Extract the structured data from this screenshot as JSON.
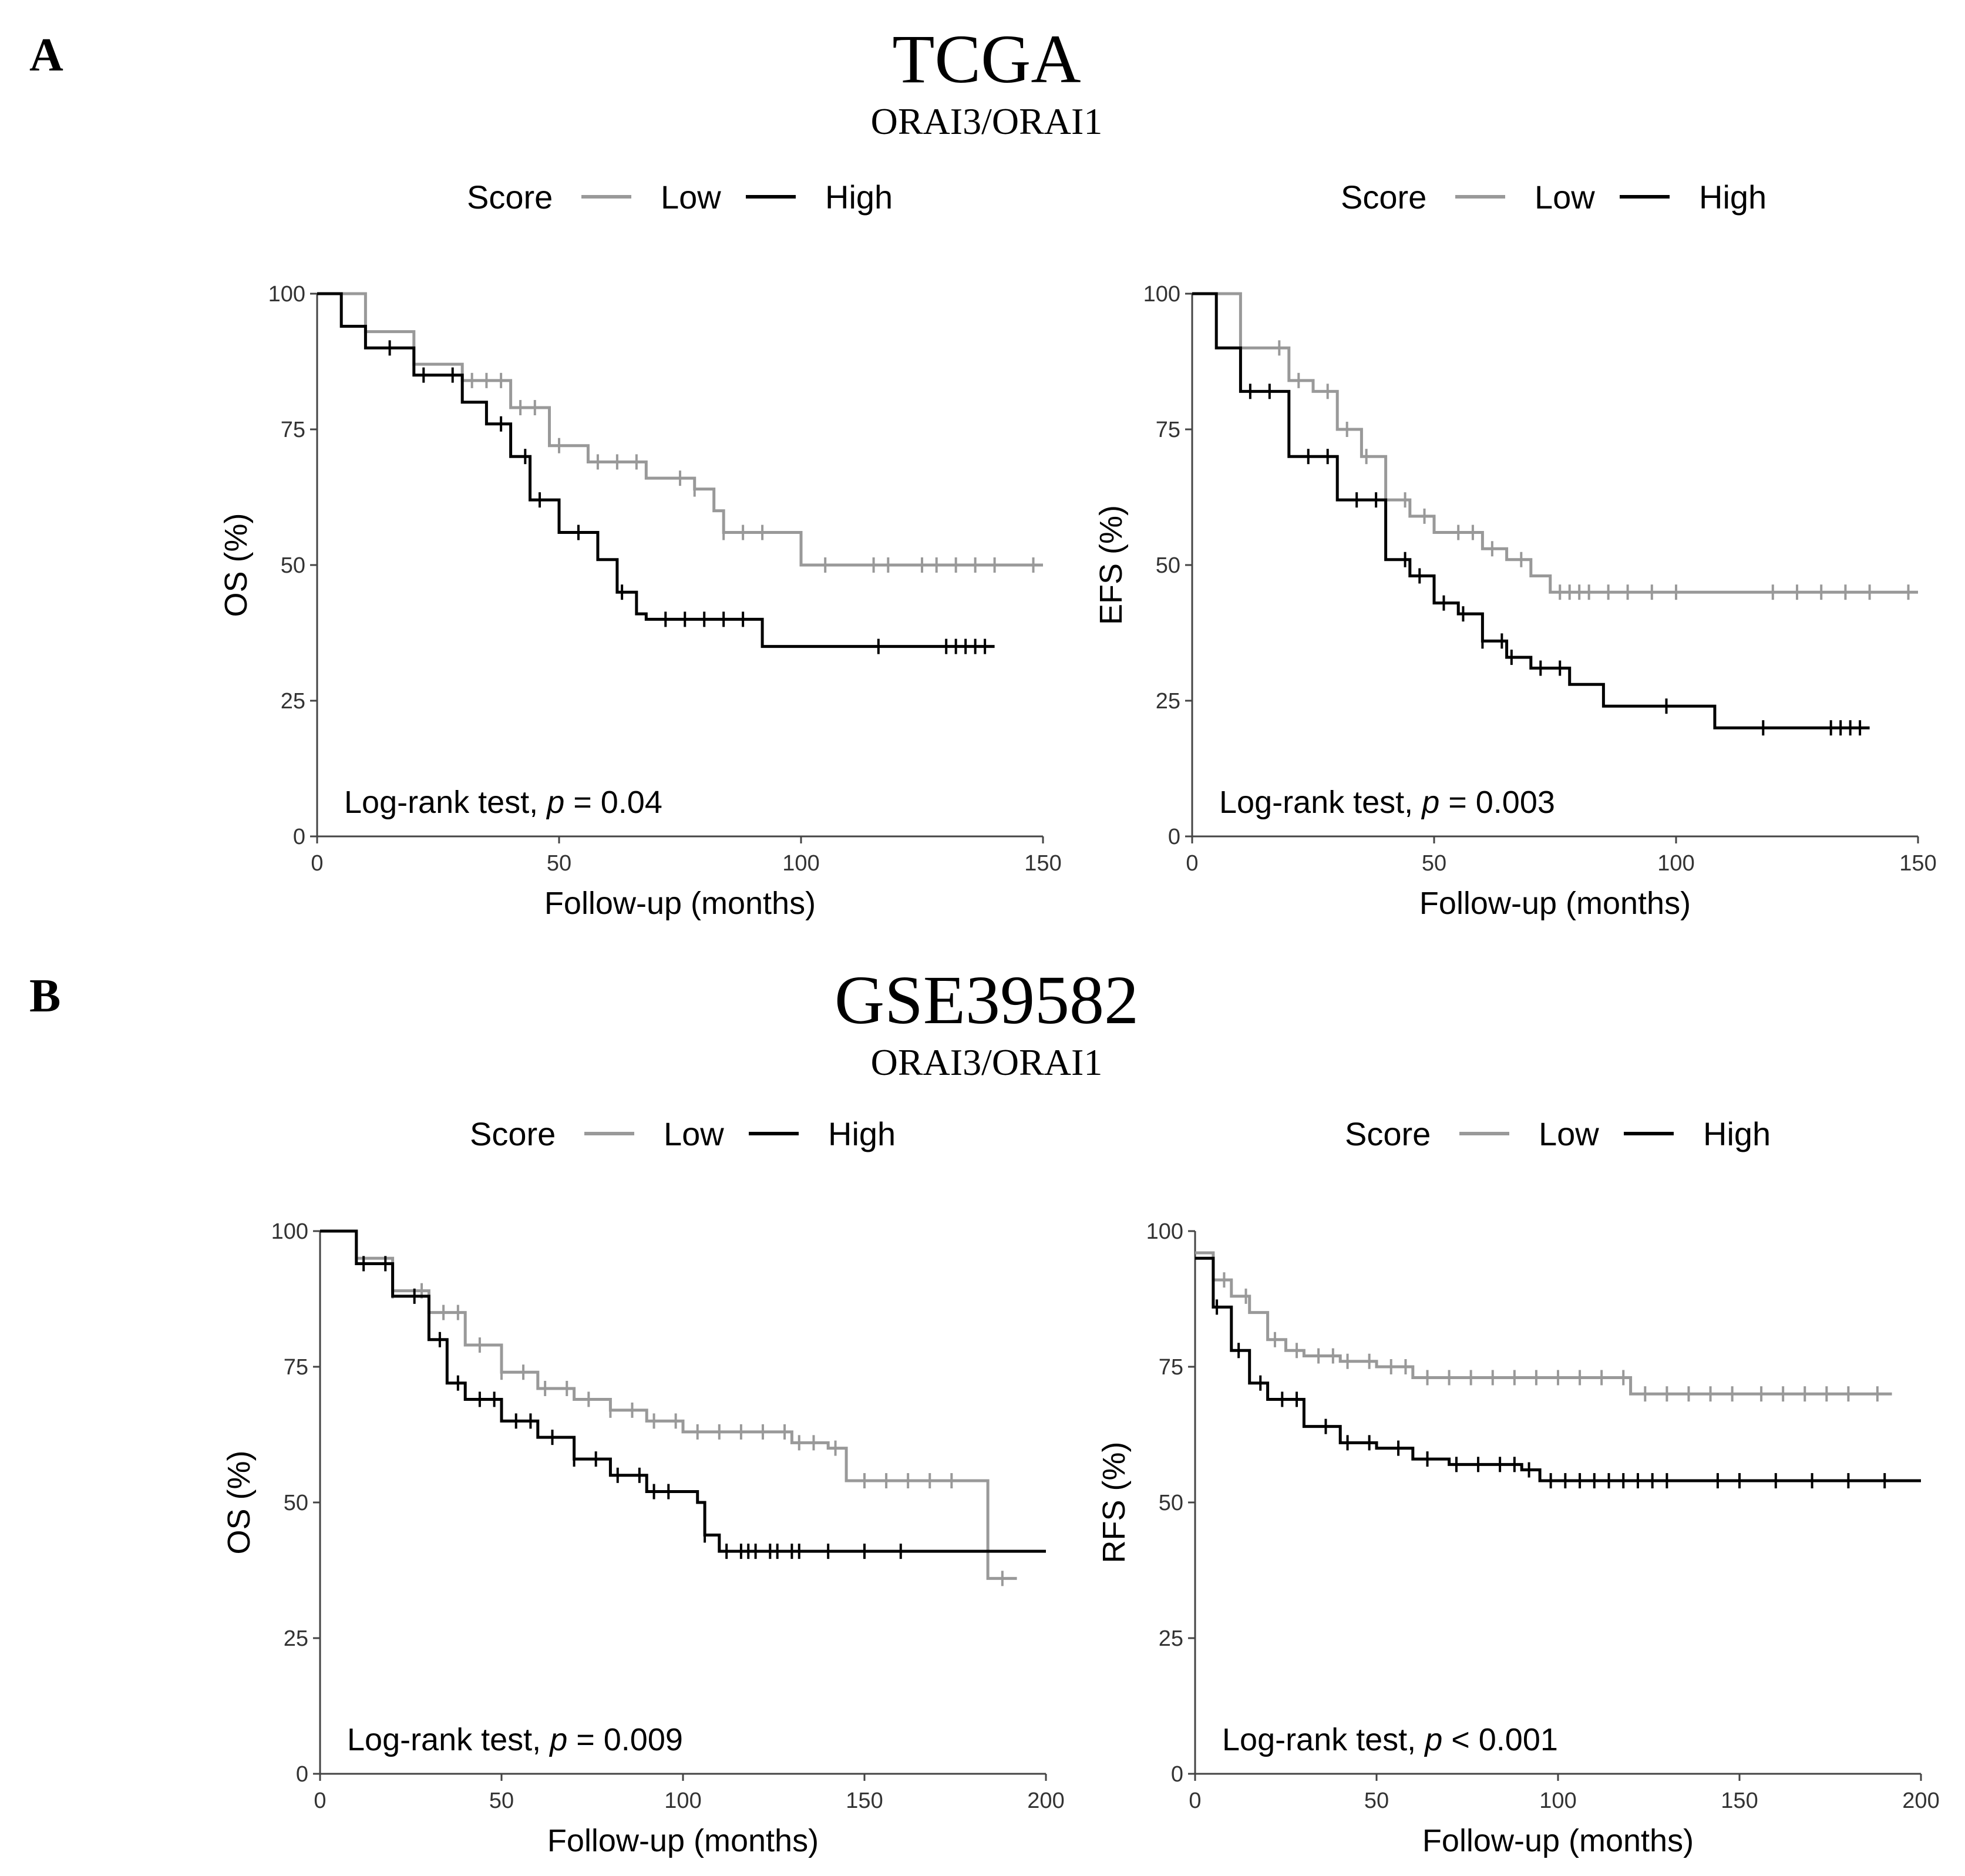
{
  "panels": [
    {
      "letter": "A",
      "dataset": "TCGA",
      "subtitle": "ORAI3/ORAI1"
    },
    {
      "letter": "B",
      "dataset": "GSE39582",
      "subtitle": "ORAI3/ORAI1"
    }
  ],
  "legend": {
    "title": "Score",
    "low": "Low",
    "high": "High"
  },
  "colors": {
    "low": "#999999",
    "high": "#000000",
    "axis": "#444444"
  },
  "chart_data": [
    {
      "type": "line",
      "id": "tcga-os",
      "xlabel": "Follow-up (months)",
      "ylabel": "OS (%)",
      "xlim": [
        0,
        150
      ],
      "ylim": [
        0,
        100
      ],
      "xticks": [
        "0",
        "50",
        "100",
        "150"
      ],
      "yticks": [
        "0",
        "25",
        "50",
        "75",
        "100"
      ],
      "annotation": {
        "prefix": "Log-rank test, ",
        "p": "p",
        "suffix": " = 0.04"
      },
      "series": [
        {
          "name": "Low",
          "step_x": [
            0,
            10,
            20,
            30,
            34,
            40,
            48,
            56,
            68,
            78,
            82,
            84,
            96,
            100,
            150
          ],
          "step_y": [
            100,
            93,
            87,
            84,
            84,
            79,
            72,
            69,
            66,
            64,
            60,
            56,
            56,
            50,
            50
          ],
          "end": 150,
          "censor_x": [
            32,
            35,
            38,
            42,
            45,
            50,
            58,
            62,
            66,
            75,
            78,
            84,
            88,
            92,
            105,
            115,
            118,
            125,
            128,
            132,
            136,
            140,
            148
          ]
        },
        {
          "name": "High",
          "step_x": [
            0,
            5,
            10,
            20,
            30,
            35,
            40,
            44,
            50,
            58,
            62,
            66,
            68,
            80,
            92,
            140
          ],
          "step_y": [
            100,
            94,
            90,
            85,
            80,
            76,
            70,
            62,
            56,
            51,
            45,
            41,
            40,
            40,
            35,
            35
          ],
          "end": 140,
          "censor_x": [
            15,
            22,
            28,
            38,
            43,
            46,
            54,
            63,
            72,
            76,
            80,
            84,
            88,
            116,
            130,
            132,
            134,
            136,
            138
          ]
        }
      ]
    },
    {
      "type": "line",
      "id": "tcga-efs",
      "xlabel": "Follow-up (months)",
      "ylabel": "EFS (%)",
      "xlim": [
        0,
        150
      ],
      "ylim": [
        0,
        100
      ],
      "xticks": [
        "0",
        "50",
        "100",
        "150"
      ],
      "yticks": [
        "0",
        "25",
        "50",
        "75",
        "100"
      ],
      "annotation": {
        "prefix": "Log-rank test, ",
        "p": "p",
        "suffix": " = 0.003"
      },
      "series": [
        {
          "name": "Low",
          "step_x": [
            0,
            10,
            20,
            25,
            30,
            35,
            40,
            45,
            50,
            60,
            65,
            70,
            74,
            150
          ],
          "step_y": [
            100,
            90,
            84,
            82,
            75,
            70,
            62,
            59,
            56,
            53,
            51,
            48,
            45,
            45
          ],
          "end": 150,
          "censor_x": [
            18,
            22,
            28,
            32,
            36,
            40,
            44,
            48,
            55,
            58,
            62,
            68,
            76,
            78,
            80,
            82,
            86,
            90,
            95,
            100,
            120,
            125,
            130,
            135,
            140,
            148
          ]
        },
        {
          "name": "High",
          "step_x": [
            0,
            5,
            10,
            20,
            30,
            40,
            45,
            50,
            55,
            60,
            65,
            70,
            78,
            85,
            108,
            140
          ],
          "step_y": [
            100,
            90,
            82,
            70,
            62,
            51,
            48,
            43,
            41,
            36,
            33,
            31,
            28,
            24,
            20,
            20
          ],
          "end": 140,
          "censor_x": [
            12,
            16,
            24,
            28,
            34,
            38,
            44,
            47,
            52,
            56,
            60,
            64,
            66,
            72,
            76,
            98,
            118,
            132,
            134,
            136,
            138
          ]
        }
      ]
    },
    {
      "type": "line",
      "id": "gse-os",
      "xlabel": "Follow-up (months)",
      "ylabel": "OS (%)",
      "xlim": [
        0,
        200
      ],
      "ylim": [
        0,
        100
      ],
      "xticks": [
        "0",
        "50",
        "100",
        "150",
        "200"
      ],
      "yticks": [
        "0",
        "25",
        "50",
        "75",
        "100"
      ],
      "annotation": {
        "prefix": "Log-rank test, ",
        "p": "p",
        "suffix": " = 0.009"
      },
      "series": [
        {
          "name": "Low",
          "step_x": [
            0,
            10,
            20,
            30,
            40,
            50,
            60,
            70,
            80,
            90,
            100,
            120,
            130,
            140,
            145,
            184,
            192
          ],
          "step_y": [
            100,
            95,
            89,
            85,
            79,
            74,
            71,
            69,
            67,
            65,
            63,
            63,
            61,
            60,
            54,
            36,
            36
          ],
          "end": 192,
          "censor_x": [
            20,
            28,
            34,
            38,
            44,
            50,
            56,
            62,
            68,
            74,
            80,
            86,
            92,
            98,
            104,
            110,
            116,
            122,
            128,
            132,
            136,
            142,
            150,
            156,
            162,
            168,
            174,
            188
          ]
        },
        {
          "name": "High",
          "step_x": [
            0,
            10,
            20,
            30,
            35,
            40,
            50,
            60,
            70,
            80,
            90,
            100,
            104,
            106,
            110,
            200
          ],
          "step_y": [
            100,
            94,
            88,
            80,
            72,
            69,
            65,
            62,
            58,
            55,
            52,
            52,
            50,
            44,
            41,
            41
          ],
          "end": 200,
          "censor_x": [
            12,
            18,
            26,
            33,
            38,
            44,
            48,
            54,
            58,
            64,
            70,
            76,
            82,
            88,
            92,
            96,
            106,
            112,
            116,
            118,
            120,
            124,
            126,
            130,
            132,
            140,
            150,
            160
          ]
        }
      ]
    },
    {
      "type": "line",
      "id": "gse-rfs",
      "xlabel": "Follow-up (months)",
      "ylabel": "RFS (%)",
      "xlim": [
        0,
        200
      ],
      "ylim": [
        0,
        100
      ],
      "xticks": [
        "0",
        "50",
        "100",
        "150",
        "200"
      ],
      "yticks": [
        "0",
        "25",
        "50",
        "75",
        "100"
      ],
      "annotation": {
        "prefix": "Log-rank test, ",
        "p": "p",
        "suffix": " < 0.001"
      },
      "series": [
        {
          "name": "Low",
          "step_x": [
            0,
            5,
            10,
            15,
            20,
            25,
            30,
            40,
            50,
            60,
            80,
            100,
            118,
            120,
            192
          ],
          "step_y": [
            96,
            91,
            88,
            85,
            80,
            78,
            77,
            76,
            75,
            73,
            73,
            73,
            73,
            70,
            70
          ],
          "end": 192,
          "censor_x": [
            8,
            14,
            22,
            28,
            34,
            38,
            42,
            48,
            54,
            58,
            64,
            70,
            76,
            82,
            88,
            94,
            100,
            106,
            112,
            118,
            124,
            130,
            136,
            142,
            148,
            156,
            162,
            168,
            174,
            180,
            188
          ]
        },
        {
          "name": "High",
          "step_x": [
            0,
            5,
            10,
            15,
            20,
            30,
            40,
            50,
            60,
            70,
            80,
            90,
            95,
            200
          ],
          "step_y": [
            95,
            86,
            78,
            72,
            69,
            64,
            61,
            60,
            58,
            57,
            57,
            56,
            54,
            54
          ],
          "end": 200,
          "censor_x": [
            6,
            12,
            18,
            24,
            28,
            36,
            42,
            48,
            56,
            64,
            72,
            78,
            84,
            88,
            92,
            98,
            102,
            106,
            110,
            114,
            118,
            122,
            126,
            130,
            144,
            150,
            160,
            170,
            180,
            190
          ]
        }
      ]
    }
  ]
}
